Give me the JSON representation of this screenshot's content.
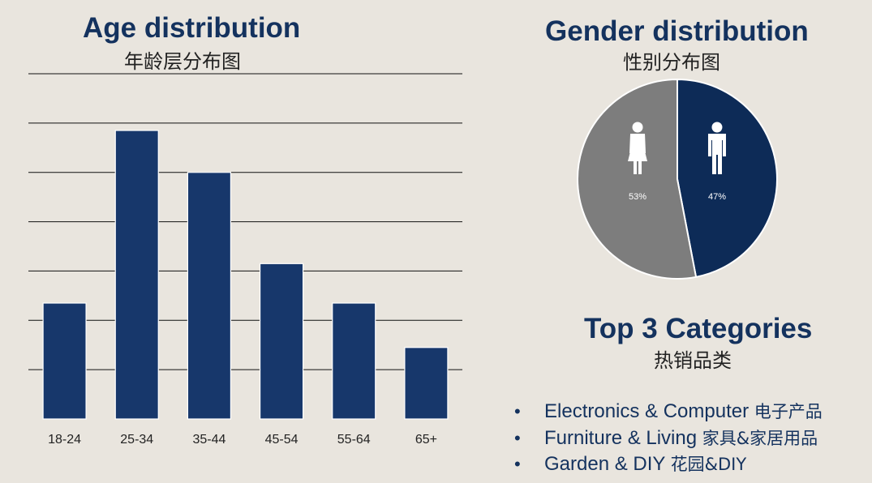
{
  "age": {
    "title": "Age distribution",
    "subtitle": "年龄层分布图"
  },
  "gender": {
    "title": "Gender distribution",
    "subtitle": "性别分布图"
  },
  "categories": {
    "title": "Top 3 Categories",
    "subtitle": "热销品类",
    "bullet": "•",
    "items": [
      {
        "en": "Electronics & Computer",
        "zh": "电子产品"
      },
      {
        "en": "Furniture & Living",
        "zh": "家具&家居用品"
      },
      {
        "en": "Garden & DIY",
        "zh": "花园&DIY"
      }
    ]
  },
  "colors": {
    "bar": "#17376b",
    "male": "#0d2b57",
    "female": "#7d7d7d",
    "grid": "#111111",
    "background": "#e9e5de"
  },
  "chart_data": [
    {
      "type": "bar",
      "title": "Age distribution",
      "subtitle": "年龄层分布图",
      "categories": [
        "18-24",
        "25-34",
        "35-44",
        "45-54",
        "55-64",
        "65+"
      ],
      "values": [
        2.35,
        5.85,
        5.0,
        3.15,
        2.35,
        1.45
      ],
      "ylim": [
        0,
        7
      ],
      "grid": true,
      "legend": "none",
      "xlabel": "",
      "ylabel": ""
    },
    {
      "type": "pie",
      "title": "Gender distribution",
      "subtitle": "性别分布图",
      "slices": [
        {
          "name": "male",
          "value": 47,
          "label": "47%"
        },
        {
          "name": "female",
          "value": 53,
          "label": "53%"
        }
      ]
    }
  ]
}
